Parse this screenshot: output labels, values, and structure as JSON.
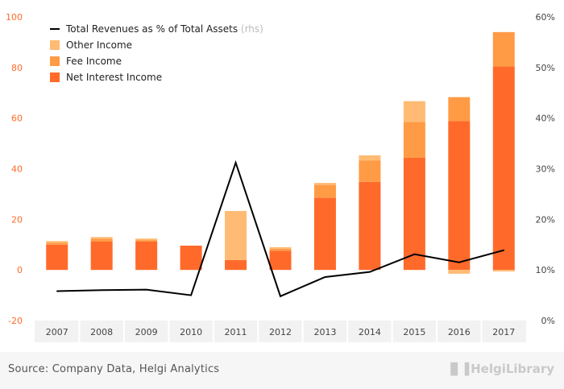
{
  "chart_data": {
    "type": "bar",
    "stacked": true,
    "categories": [
      "2007",
      "2008",
      "2009",
      "2010",
      "2011",
      "2012",
      "2013",
      "2014",
      "2015",
      "2016",
      "2017"
    ],
    "series": [
      {
        "name": "Net Interest Income",
        "type": "bar",
        "axis": "left",
        "color": "#ff6a2a",
        "values": [
          10.0,
          11.2,
          11.2,
          9.6,
          3.9,
          7.6,
          28.5,
          34.8,
          44.3,
          58.8,
          80.4
        ]
      },
      {
        "name": "Fee Income",
        "type": "bar",
        "axis": "left",
        "color": "#ff9b45",
        "values": [
          0.8,
          1.2,
          0.6,
          0.0,
          0.0,
          0.8,
          5.1,
          8.5,
          14.2,
          9.5,
          13.6
        ]
      },
      {
        "name": "Other Income",
        "type": "bar",
        "axis": "left",
        "color": "#ffbb73",
        "values": [
          0.6,
          0.6,
          0.6,
          0.0,
          19.4,
          0.6,
          0.8,
          2.0,
          8.2,
          -1.5,
          -0.6
        ]
      },
      {
        "name": "Total Revenues as % of Total Assets",
        "name_suffix": "(rhs)",
        "type": "line",
        "axis": "right",
        "color": "#000000",
        "values": [
          5.8,
          6.0,
          6.1,
          5.0,
          31.2,
          4.8,
          8.6,
          9.6,
          13.1,
          11.5,
          13.9
        ]
      }
    ],
    "left_axis": {
      "min": -20,
      "max": 100,
      "ticks": [
        -20,
        0,
        20,
        40,
        60,
        80,
        100
      ]
    },
    "right_axis": {
      "min": 0,
      "max": 60,
      "ticks": [
        "0%",
        "10%",
        "20%",
        "30%",
        "40%",
        "50%",
        "60%"
      ]
    },
    "legend_position": "top-left",
    "grid": false
  },
  "footer": {
    "source": "Source: Company Data, Helgi Analytics",
    "logo_text": "HelgiLibrary"
  },
  "colors": {
    "axis_text_left": "#ff6a2a",
    "axis_text": "#444444",
    "legend_suffix": "#bbbbbb"
  }
}
